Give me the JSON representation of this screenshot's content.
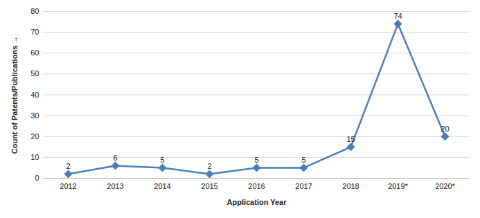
{
  "chart_data": {
    "type": "line",
    "categories": [
      "2012",
      "2013",
      "2014",
      "2015",
      "2016",
      "2017",
      "2018",
      "2019*",
      "2020*"
    ],
    "values": [
      2,
      6,
      5,
      2,
      5,
      5,
      15,
      74,
      20
    ],
    "color": "#4a7ebb",
    "marker": "diamond",
    "x_label": "Application Year",
    "y_label": "Count of Patents/Publications",
    "ylim": [
      0,
      80
    ],
    "yticks": [
      0,
      10,
      20,
      30,
      40,
      50,
      60,
      70,
      80
    ],
    "grid": true,
    "data_labels": true
  }
}
